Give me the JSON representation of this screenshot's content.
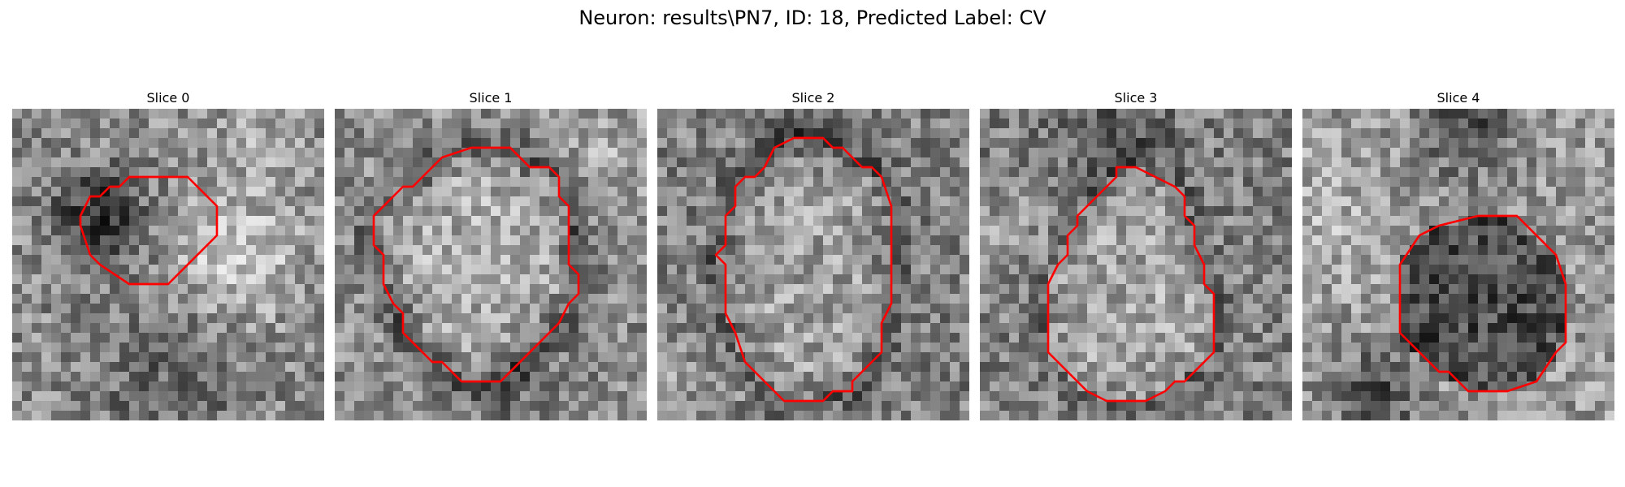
{
  "figure": {
    "title": "Neuron: results\\PN7, ID: 18, Predicted Label: CV",
    "colormap": "gray",
    "contour_color": "#ff0000"
  },
  "panels": [
    {
      "title": "Slice 0",
      "tone": "dark center blob, bright area to the right",
      "contour": [
        [
          16,
          7
        ],
        [
          18,
          7
        ],
        [
          21,
          10
        ],
        [
          21,
          13
        ],
        [
          16,
          18
        ],
        [
          12,
          18
        ],
        [
          9,
          16
        ],
        [
          8,
          15
        ],
        [
          7,
          12
        ],
        [
          7,
          11
        ],
        [
          8,
          9
        ],
        [
          9,
          9
        ],
        [
          10,
          8
        ],
        [
          11,
          8
        ],
        [
          12,
          7
        ]
      ]
    },
    {
      "title": "Slice 1",
      "tone": "mid-gray ring, lighter center",
      "contour": [
        [
          14,
          4
        ],
        [
          18,
          4
        ],
        [
          20,
          6
        ],
        [
          22,
          6
        ],
        [
          23,
          7
        ],
        [
          23,
          9
        ],
        [
          24,
          10
        ],
        [
          24,
          16
        ],
        [
          25,
          17
        ],
        [
          25,
          19
        ],
        [
          24,
          20
        ],
        [
          23,
          22
        ],
        [
          17,
          28
        ],
        [
          13,
          28
        ],
        [
          11,
          26
        ],
        [
          10,
          26
        ],
        [
          7,
          23
        ],
        [
          7,
          21
        ],
        [
          6,
          20
        ],
        [
          5,
          18
        ],
        [
          5,
          15
        ],
        [
          4,
          14
        ],
        [
          4,
          11
        ],
        [
          7,
          8
        ],
        [
          8,
          8
        ],
        [
          11,
          5
        ]
      ]
    },
    {
      "title": "Slice 2",
      "tone": "textured, lighter center",
      "contour": [
        [
          14,
          3
        ],
        [
          17,
          3
        ],
        [
          18,
          4
        ],
        [
          19,
          4
        ],
        [
          21,
          6
        ],
        [
          22,
          6
        ],
        [
          23,
          7
        ],
        [
          24,
          10
        ],
        [
          24,
          20
        ],
        [
          23,
          22
        ],
        [
          23,
          25
        ],
        [
          20,
          28
        ],
        [
          20,
          29
        ],
        [
          18,
          29
        ],
        [
          17,
          30
        ],
        [
          13,
          30
        ],
        [
          10,
          27
        ],
        [
          9,
          26
        ],
        [
          8,
          23
        ],
        [
          7,
          21
        ],
        [
          7,
          16
        ],
        [
          6,
          15
        ],
        [
          7,
          14
        ],
        [
          7,
          11
        ],
        [
          8,
          10
        ],
        [
          8,
          8
        ],
        [
          9,
          7
        ],
        [
          10,
          7
        ],
        [
          11,
          6
        ],
        [
          12,
          4
        ]
      ]
    },
    {
      "title": "Slice 3",
      "tone": "light center, darker surroundings",
      "contour": [
        [
          14,
          6
        ],
        [
          16,
          6
        ],
        [
          18,
          7
        ],
        [
          20,
          8
        ],
        [
          21,
          9
        ],
        [
          21,
          11
        ],
        [
          22,
          12
        ],
        [
          22,
          14
        ],
        [
          23,
          16
        ],
        [
          23,
          18
        ],
        [
          24,
          19
        ],
        [
          24,
          25
        ],
        [
          21,
          28
        ],
        [
          20,
          28
        ],
        [
          19,
          29
        ],
        [
          17,
          30
        ],
        [
          13,
          30
        ],
        [
          11,
          29
        ],
        [
          10,
          28
        ],
        [
          7,
          25
        ],
        [
          7,
          18
        ],
        [
          8,
          16
        ],
        [
          9,
          15
        ],
        [
          9,
          13
        ],
        [
          10,
          12
        ],
        [
          10,
          11
        ],
        [
          11,
          10
        ],
        [
          12,
          9
        ],
        [
          13,
          8
        ],
        [
          14,
          7
        ]
      ]
    },
    {
      "title": "Slice 4",
      "tone": "dark central body, lighter edges",
      "contour": [
        [
          18,
          11
        ],
        [
          22,
          11
        ],
        [
          26,
          15
        ],
        [
          27,
          18
        ],
        [
          27,
          24
        ],
        [
          26,
          25
        ],
        [
          24,
          28
        ],
        [
          21,
          29
        ],
        [
          17,
          29
        ],
        [
          16,
          28
        ],
        [
          15,
          27
        ],
        [
          14,
          27
        ],
        [
          11,
          24
        ],
        [
          10,
          23
        ],
        [
          10,
          16
        ],
        [
          12,
          13
        ],
        [
          14,
          12
        ]
      ]
    }
  ]
}
